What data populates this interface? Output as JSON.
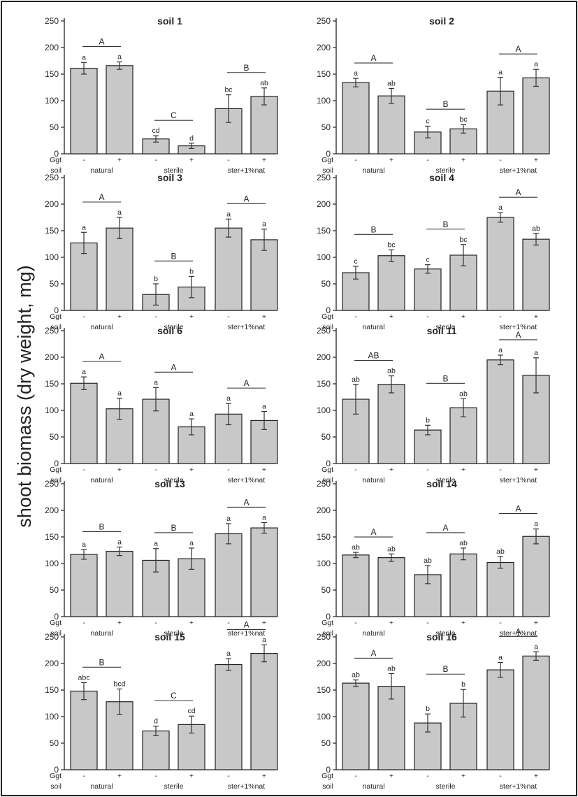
{
  "chart_data": {
    "type": "bar",
    "ylabel": "shoot biomass (dry weight, mg)",
    "ylim": [
      0,
      250
    ],
    "yticks": [
      0,
      50,
      100,
      150,
      200,
      250
    ],
    "bar_color": "#c8c8c8",
    "x_rows": {
      "ggt_label": "Ggt",
      "soil_label": "soil",
      "ggt_values": [
        "-",
        "+",
        "-",
        "+",
        "-",
        "+"
      ],
      "groups": [
        "natural",
        "sterile",
        "ster+1%nat"
      ]
    },
    "panels": [
      {
        "title": "soil 1",
        "values": [
          161,
          166,
          28,
          15,
          85,
          108
        ],
        "errors": [
          11,
          7,
          6,
          5,
          26,
          16
        ],
        "letters": [
          "a",
          "a",
          "cd",
          "d",
          "bc",
          "ab"
        ],
        "group_letters": [
          "A",
          "C",
          "B"
        ]
      },
      {
        "title": "soil 2",
        "values": [
          134,
          109,
          41,
          47,
          118,
          143
        ],
        "errors": [
          8,
          14,
          11,
          8,
          26,
          16
        ],
        "letters": [
          "a",
          "ab",
          "c",
          "bc",
          "a",
          "a"
        ],
        "group_letters": [
          "A",
          "B",
          "A"
        ]
      },
      {
        "title": "soil 3",
        "values": [
          127,
          155,
          30,
          44,
          155,
          133
        ],
        "errors": [
          20,
          20,
          20,
          20,
          17,
          20
        ],
        "letters": [
          "a",
          "a",
          "b",
          "b",
          "a",
          "a"
        ],
        "group_letters": [
          "A",
          "B",
          "A"
        ]
      },
      {
        "title": "soil 4",
        "values": [
          71,
          103,
          78,
          104,
          175,
          134
        ],
        "errors": [
          12,
          11,
          8,
          20,
          9,
          11
        ],
        "letters": [
          "c",
          "bc",
          "c",
          "bc",
          "a",
          "ab"
        ],
        "group_letters": [
          "B",
          "B",
          "A"
        ]
      },
      {
        "title": "soil 6",
        "values": [
          151,
          103,
          121,
          69,
          93,
          81
        ],
        "errors": [
          12,
          20,
          22,
          15,
          20,
          17
        ],
        "letters": [
          "a",
          "a",
          "a",
          "a",
          "a",
          "a"
        ],
        "group_letters": [
          "A",
          "A",
          "A"
        ]
      },
      {
        "title": "soil 11",
        "values": [
          121,
          149,
          63,
          105,
          195,
          166
        ],
        "errors": [
          28,
          16,
          9,
          17,
          9,
          33
        ],
        "letters": [
          "ab",
          "ab",
          "b",
          "ab",
          "a",
          "a"
        ],
        "group_letters": [
          "AB",
          "B",
          "A"
        ]
      },
      {
        "title": "soil 13",
        "values": [
          117,
          123,
          106,
          109,
          156,
          167
        ],
        "errors": [
          9,
          8,
          22,
          20,
          19,
          10
        ],
        "letters": [
          "a",
          "a",
          "a",
          "a",
          "a",
          "a"
        ],
        "group_letters": [
          "B",
          "B",
          "A"
        ]
      },
      {
        "title": "soil 14",
        "values": [
          116,
          111,
          79,
          118,
          102,
          151
        ],
        "errors": [
          5,
          7,
          17,
          11,
          11,
          14
        ],
        "letters": [
          "ab",
          "ab",
          "ab",
          "ab",
          "ab",
          "a"
        ],
        "group_letters": [
          "A",
          "A",
          "A"
        ]
      },
      {
        "title": "soil 15",
        "values": [
          148,
          128,
          73,
          85,
          198,
          219
        ],
        "errors": [
          16,
          24,
          9,
          16,
          11,
          16
        ],
        "letters": [
          "abc",
          "bcd",
          "d",
          "cd",
          "a",
          "a"
        ],
        "group_letters": [
          "B",
          "C",
          "A"
        ]
      },
      {
        "title": "soil 16",
        "values": [
          163,
          157,
          88,
          125,
          188,
          214
        ],
        "errors": [
          6,
          24,
          17,
          26,
          14,
          8
        ],
        "letters": [
          "ab",
          "ab",
          "b",
          "b",
          "a",
          "a"
        ],
        "group_letters": [
          "A",
          "B",
          "A"
        ]
      }
    ]
  }
}
